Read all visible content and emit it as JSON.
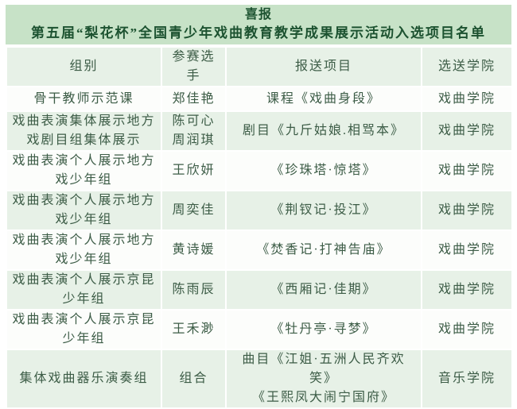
{
  "page": {
    "title": "喜报",
    "subtitle": "第五届“梨花杯”全国青少年戏曲教育教学成果展示活动入选项目名单"
  },
  "table": {
    "headers": [
      "组别",
      "参赛选手",
      "报送项目",
      "选送学院"
    ],
    "rows": [
      {
        "group": "骨干教师示范课",
        "contestant": "郑佳艳",
        "project": "课程《戏曲身段》",
        "college": "戏曲学院"
      },
      {
        "group": "戏曲表演集体展示地方戏剧目组集体展示",
        "contestant": "陈可心\n周润琪",
        "project": "剧目《九斤姑娘.相骂本》",
        "college": "戏曲学院"
      },
      {
        "group": "戏曲表演个人展示地方戏少年组",
        "contestant": "王欣妍",
        "project": "《珍珠塔·惊塔》",
        "college": "戏曲学院"
      },
      {
        "group": "戏曲表演个人展示地方戏少年组",
        "contestant": "周奕佳",
        "project": "《荆钗记·投江》",
        "college": "戏曲学院"
      },
      {
        "group": "戏曲表演个人展示地方戏少年组",
        "contestant": "黄诗媛",
        "project": "《焚香记·打神告庙》",
        "college": "戏曲学院"
      },
      {
        "group": "戏曲表演个人展示京昆少年组",
        "contestant": "陈雨辰",
        "project": "《西厢记·佳期》",
        "college": "戏曲学院"
      },
      {
        "group": "戏曲表演个人展示京昆少年组",
        "contestant": "王禾渺",
        "project": "《牡丹亭·寻梦》",
        "college": "戏曲学院"
      },
      {
        "group": "集体戏曲器乐演奏组",
        "contestant": "组合",
        "project": "曲目《江姐·五洲人民齐欢笑》\n《王熙凤大闹宁国府》",
        "college": "音乐学院"
      }
    ]
  },
  "colors": {
    "title_band_bg": "#c7e2c7",
    "header_row_bg": "#e7f1e7",
    "row_even_bg": "#e7f1e7",
    "row_odd_bg": "#fcfdfb",
    "title_text": "#1c5230",
    "body_text": "#3c5c46"
  }
}
